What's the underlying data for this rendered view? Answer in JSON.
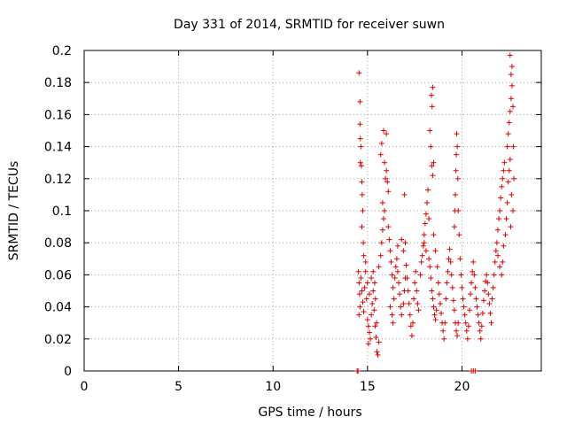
{
  "chart_data": {
    "type": "scatter",
    "title": "Day 331 of 2014, SRMTID for receiver suwn",
    "xlabel": "GPS time / hours",
    "ylabel": "SRMTID / TECUs",
    "xlim": [
      0,
      24.2
    ],
    "ylim": [
      0,
      0.2
    ],
    "x_ticks": [
      0,
      5,
      10,
      15,
      20
    ],
    "y_ticks": [
      0,
      0.02,
      0.04,
      0.06,
      0.08,
      0.1,
      0.12,
      0.14,
      0.16,
      0.18,
      0.2
    ],
    "grid": true,
    "marker": "+",
    "color": "#e00000",
    "series": [
      {
        "name": "SRMTID",
        "points": [
          [
            14.45,
            0.0
          ],
          [
            14.5,
            0.0
          ],
          [
            20.5,
            0.0
          ],
          [
            20.6,
            0.0
          ],
          [
            20.7,
            0.0
          ],
          [
            14.55,
            0.186
          ],
          [
            14.6,
            0.168
          ],
          [
            14.6,
            0.154
          ],
          [
            14.62,
            0.145
          ],
          [
            14.65,
            0.14
          ],
          [
            14.62,
            0.13
          ],
          [
            14.68,
            0.128
          ],
          [
            14.7,
            0.118
          ],
          [
            14.72,
            0.11
          ],
          [
            14.75,
            0.1
          ],
          [
            14.7,
            0.09
          ],
          [
            14.78,
            0.08
          ],
          [
            14.8,
            0.072
          ],
          [
            14.52,
            0.062
          ],
          [
            14.55,
            0.055
          ],
          [
            14.58,
            0.048
          ],
          [
            14.6,
            0.04
          ],
          [
            14.55,
            0.035
          ],
          [
            14.65,
            0.058
          ],
          [
            14.7,
            0.05
          ],
          [
            14.75,
            0.043
          ],
          [
            14.8,
            0.037
          ],
          [
            14.85,
            0.052
          ],
          [
            14.9,
            0.062
          ],
          [
            14.95,
            0.045
          ],
          [
            15.0,
            0.032
          ],
          [
            15.05,
            0.028
          ],
          [
            15.1,
            0.024
          ],
          [
            15.15,
            0.02
          ],
          [
            15.05,
            0.017
          ],
          [
            15.2,
            0.035
          ],
          [
            15.25,
            0.042
          ],
          [
            15.3,
            0.05
          ],
          [
            15.35,
            0.038
          ],
          [
            15.4,
            0.028
          ],
          [
            15.45,
            0.021
          ],
          [
            15.5,
            0.012
          ],
          [
            15.55,
            0.01
          ],
          [
            15.6,
            0.018
          ],
          [
            15.48,
            0.03
          ],
          [
            15.42,
            0.045
          ],
          [
            15.38,
            0.055
          ],
          [
            15.3,
            0.062
          ],
          [
            15.2,
            0.058
          ],
          [
            15.1,
            0.048
          ],
          [
            15.0,
            0.055
          ],
          [
            14.9,
            0.068
          ],
          [
            15.6,
            0.065
          ],
          [
            15.7,
            0.072
          ],
          [
            15.75,
            0.08
          ],
          [
            15.8,
            0.088
          ],
          [
            15.85,
            0.095
          ],
          [
            15.9,
            0.1
          ],
          [
            15.8,
            0.105
          ],
          [
            15.95,
            0.12
          ],
          [
            16.0,
            0.125
          ],
          [
            16.05,
            0.118
          ],
          [
            16.1,
            0.112
          ],
          [
            15.7,
            0.135
          ],
          [
            15.75,
            0.142
          ],
          [
            15.85,
            0.15
          ],
          [
            16.0,
            0.148
          ],
          [
            15.9,
            0.13
          ],
          [
            16.1,
            0.09
          ],
          [
            16.15,
            0.082
          ],
          [
            16.2,
            0.075
          ],
          [
            16.25,
            0.068
          ],
          [
            16.3,
            0.06
          ],
          [
            16.35,
            0.052
          ],
          [
            16.4,
            0.045
          ],
          [
            16.2,
            0.04
          ],
          [
            16.3,
            0.035
          ],
          [
            16.35,
            0.03
          ],
          [
            16.45,
            0.058
          ],
          [
            16.5,
            0.065
          ],
          [
            16.55,
            0.07
          ],
          [
            16.6,
            0.062
          ],
          [
            16.65,
            0.055
          ],
          [
            16.7,
            0.048
          ],
          [
            16.75,
            0.04
          ],
          [
            16.8,
            0.035
          ],
          [
            16.9,
            0.042
          ],
          [
            16.95,
            0.05
          ],
          [
            17.0,
            0.058
          ],
          [
            17.05,
            0.066
          ],
          [
            17.1,
            0.058
          ],
          [
            17.15,
            0.05
          ],
          [
            17.2,
            0.042
          ],
          [
            17.25,
            0.035
          ],
          [
            17.3,
            0.028
          ],
          [
            17.35,
            0.022
          ],
          [
            17.4,
            0.03
          ],
          [
            17.45,
            0.045
          ],
          [
            16.9,
            0.075
          ],
          [
            16.8,
            0.082
          ],
          [
            16.6,
            0.078
          ],
          [
            17.0,
            0.08
          ],
          [
            16.95,
            0.11
          ],
          [
            17.5,
            0.055
          ],
          [
            17.55,
            0.062
          ],
          [
            17.6,
            0.05
          ],
          [
            17.65,
            0.042
          ],
          [
            17.7,
            0.038
          ],
          [
            17.8,
            0.06
          ],
          [
            17.85,
            0.068
          ],
          [
            17.9,
            0.072
          ],
          [
            17.95,
            0.078
          ],
          [
            18.0,
            0.085
          ],
          [
            18.05,
            0.092
          ],
          [
            18.1,
            0.098
          ],
          [
            18.15,
            0.105
          ],
          [
            18.2,
            0.113
          ],
          [
            18.0,
            0.08
          ],
          [
            18.1,
            0.075
          ],
          [
            18.25,
            0.07
          ],
          [
            18.3,
            0.065
          ],
          [
            18.35,
            0.058
          ],
          [
            18.4,
            0.05
          ],
          [
            18.45,
            0.045
          ],
          [
            18.5,
            0.04
          ],
          [
            18.55,
            0.035
          ],
          [
            18.6,
            0.032
          ],
          [
            18.65,
            0.038
          ],
          [
            18.3,
            0.15
          ],
          [
            18.35,
            0.14
          ],
          [
            18.4,
            0.128
          ],
          [
            18.45,
            0.122
          ],
          [
            18.5,
            0.13
          ],
          [
            18.38,
            0.172
          ],
          [
            18.42,
            0.165
          ],
          [
            18.45,
            0.177
          ],
          [
            18.25,
            0.095
          ],
          [
            18.5,
            0.085
          ],
          [
            18.6,
            0.075
          ],
          [
            18.7,
            0.065
          ],
          [
            18.75,
            0.055
          ],
          [
            18.8,
            0.048
          ],
          [
            18.85,
            0.042
          ],
          [
            18.9,
            0.036
          ],
          [
            18.95,
            0.03
          ],
          [
            19.0,
            0.025
          ],
          [
            19.05,
            0.02
          ],
          [
            19.1,
            0.03
          ],
          [
            19.15,
            0.045
          ],
          [
            19.2,
            0.055
          ],
          [
            19.25,
            0.062
          ],
          [
            19.3,
            0.07
          ],
          [
            19.35,
            0.076
          ],
          [
            19.4,
            0.068
          ],
          [
            19.45,
            0.06
          ],
          [
            19.5,
            0.052
          ],
          [
            19.55,
            0.044
          ],
          [
            19.6,
            0.038
          ],
          [
            19.65,
            0.03
          ],
          [
            19.7,
            0.025
          ],
          [
            19.75,
            0.022
          ],
          [
            19.8,
            0.03
          ],
          [
            19.6,
            0.09
          ],
          [
            19.62,
            0.1
          ],
          [
            19.65,
            0.11
          ],
          [
            19.68,
            0.125
          ],
          [
            19.7,
            0.135
          ],
          [
            19.72,
            0.148
          ],
          [
            19.75,
            0.14
          ],
          [
            19.78,
            0.12
          ],
          [
            19.8,
            0.1
          ],
          [
            19.85,
            0.085
          ],
          [
            19.9,
            0.07
          ],
          [
            19.95,
            0.06
          ],
          [
            20.0,
            0.052
          ],
          [
            20.05,
            0.045
          ],
          [
            20.1,
            0.04
          ],
          [
            20.15,
            0.035
          ],
          [
            20.2,
            0.03
          ],
          [
            20.25,
            0.025
          ],
          [
            20.3,
            0.02
          ],
          [
            20.35,
            0.028
          ],
          [
            20.4,
            0.038
          ],
          [
            20.45,
            0.048
          ],
          [
            20.5,
            0.055
          ],
          [
            20.55,
            0.062
          ],
          [
            20.6,
            0.068
          ],
          [
            20.65,
            0.06
          ],
          [
            20.7,
            0.052
          ],
          [
            20.75,
            0.045
          ],
          [
            20.8,
            0.04
          ],
          [
            20.85,
            0.035
          ],
          [
            20.9,
            0.03
          ],
          [
            20.95,
            0.025
          ],
          [
            21.0,
            0.02
          ],
          [
            21.05,
            0.028
          ],
          [
            21.1,
            0.036
          ],
          [
            21.15,
            0.044
          ],
          [
            21.2,
            0.05
          ],
          [
            21.25,
            0.056
          ],
          [
            21.3,
            0.06
          ],
          [
            21.35,
            0.055
          ],
          [
            21.4,
            0.048
          ],
          [
            21.45,
            0.042
          ],
          [
            21.5,
            0.036
          ],
          [
            21.55,
            0.03
          ],
          [
            21.6,
            0.045
          ],
          [
            21.65,
            0.052
          ],
          [
            21.7,
            0.06
          ],
          [
            21.75,
            0.068
          ],
          [
            21.8,
            0.075
          ],
          [
            21.85,
            0.08
          ],
          [
            21.9,
            0.088
          ],
          [
            21.95,
            0.095
          ],
          [
            22.0,
            0.1
          ],
          [
            22.05,
            0.108
          ],
          [
            22.1,
            0.115
          ],
          [
            22.15,
            0.12
          ],
          [
            22.2,
            0.125
          ],
          [
            22.25,
            0.13
          ],
          [
            21.9,
            0.072
          ],
          [
            22.0,
            0.065
          ],
          [
            22.1,
            0.06
          ],
          [
            22.15,
            0.068
          ],
          [
            22.2,
            0.078
          ],
          [
            22.3,
            0.085
          ],
          [
            22.35,
            0.095
          ],
          [
            22.4,
            0.105
          ],
          [
            22.45,
            0.118
          ],
          [
            22.5,
            0.125
          ],
          [
            22.55,
            0.132
          ],
          [
            22.4,
            0.14
          ],
          [
            22.45,
            0.148
          ],
          [
            22.5,
            0.155
          ],
          [
            22.55,
            0.162
          ],
          [
            22.6,
            0.17
          ],
          [
            22.65,
            0.178
          ],
          [
            22.6,
            0.185
          ],
          [
            22.65,
            0.19
          ],
          [
            22.55,
            0.197
          ],
          [
            22.7,
            0.165
          ],
          [
            22.72,
            0.14
          ],
          [
            22.75,
            0.12
          ],
          [
            22.7,
            0.1
          ],
          [
            22.62,
            0.11
          ],
          [
            22.58,
            0.09
          ]
        ]
      }
    ]
  }
}
